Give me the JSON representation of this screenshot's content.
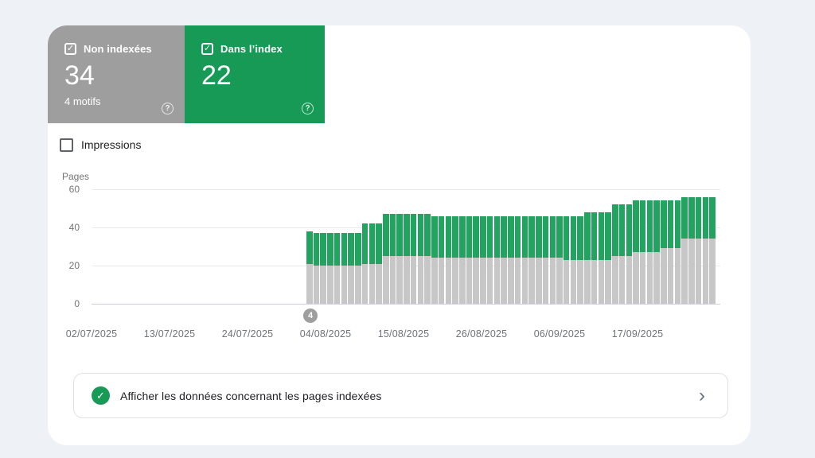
{
  "colors": {
    "page_bg": "#eef1f6",
    "panel_bg": "#ffffff",
    "gray_card": "#9e9e9e",
    "green_card": "#179a56",
    "bar_green": "#22a360",
    "bar_gray": "#c7c7c7",
    "grid": "#e8eaed",
    "tick_text": "#757575",
    "body_text": "#202124"
  },
  "icons": {
    "check_glyph": "✓",
    "help_glyph": "?",
    "chevron_glyph": "›"
  },
  "summary_cards": [
    {
      "id": "non-indexed",
      "label": "Non indexées",
      "value": "34",
      "sub": "4 motifs",
      "checked": true
    },
    {
      "id": "indexed",
      "label": "Dans l’index",
      "value": "22",
      "checked": true
    }
  ],
  "impressions_toggle": {
    "label": "Impressions",
    "checked": false
  },
  "chart_data": {
    "type": "bar",
    "stacked": true,
    "title": "",
    "xlabel": "",
    "ylabel": "Pages",
    "ylim": [
      0,
      60
    ],
    "y_ticks": [
      0,
      20,
      40,
      60
    ],
    "grid": true,
    "legend_position": "none",
    "x_tick_labels": [
      "02/07/2025",
      "13/07/2025",
      "24/07/2025",
      "04/08/2025",
      "15/08/2025",
      "26/08/2025",
      "06/09/2025",
      "17/09/2025"
    ],
    "annotation_badge": {
      "label": "4",
      "date": "01/08/2025"
    },
    "x": [
      "01/08/2025",
      "02/08/2025",
      "03/08/2025",
      "04/08/2025",
      "05/08/2025",
      "06/08/2025",
      "07/08/2025",
      "08/08/2025",
      "09/08/2025",
      "10/08/2025",
      "11/08/2025",
      "12/08/2025",
      "13/08/2025",
      "14/08/2025",
      "15/08/2025",
      "16/08/2025",
      "17/08/2025",
      "18/08/2025",
      "19/08/2025",
      "20/08/2025",
      "21/08/2025",
      "22/08/2025",
      "23/08/2025",
      "24/08/2025",
      "25/08/2025",
      "26/08/2025",
      "27/08/2025",
      "28/08/2025",
      "29/08/2025",
      "30/08/2025",
      "31/08/2025",
      "01/09/2025",
      "02/09/2025",
      "03/09/2025",
      "04/09/2025",
      "05/09/2025",
      "06/09/2025",
      "07/09/2025",
      "08/09/2025",
      "09/09/2025",
      "10/09/2025",
      "11/09/2025",
      "12/09/2025",
      "13/09/2025",
      "14/09/2025",
      "15/09/2025",
      "16/09/2025",
      "17/09/2025",
      "18/09/2025",
      "19/09/2025",
      "20/09/2025",
      "21/09/2025",
      "22/09/2025",
      "23/09/2025",
      "24/09/2025",
      "25/09/2025",
      "26/09/2025",
      "27/09/2025",
      "28/09/2025"
    ],
    "series": [
      {
        "name": "Non indexées",
        "color": "#c7c7c7",
        "values": [
          21,
          20,
          20,
          20,
          20,
          20,
          20,
          20,
          21,
          21,
          21,
          25,
          25,
          25,
          25,
          25,
          25,
          25,
          24,
          24,
          24,
          24,
          24,
          24,
          24,
          24,
          24,
          24,
          24,
          24,
          24,
          24,
          24,
          24,
          24,
          24,
          24,
          23,
          23,
          23,
          23,
          23,
          23,
          23,
          25,
          25,
          25,
          27,
          27,
          27,
          27,
          29,
          29,
          29,
          34,
          34,
          34,
          34,
          34
        ]
      },
      {
        "name": "Dans l’index",
        "color": "#22a360",
        "values": [
          17,
          17,
          17,
          17,
          17,
          17,
          17,
          17,
          21,
          21,
          21,
          22,
          22,
          22,
          22,
          22,
          22,
          22,
          22,
          22,
          22,
          22,
          22,
          22,
          22,
          22,
          22,
          22,
          22,
          22,
          22,
          22,
          22,
          22,
          22,
          22,
          22,
          23,
          23,
          23,
          25,
          25,
          25,
          25,
          27,
          27,
          27,
          27,
          27,
          27,
          27,
          25,
          25,
          25,
          22,
          22,
          22,
          22,
          22
        ]
      }
    ]
  },
  "footer_link": {
    "label": "Afficher les données concernant les pages indexées"
  }
}
